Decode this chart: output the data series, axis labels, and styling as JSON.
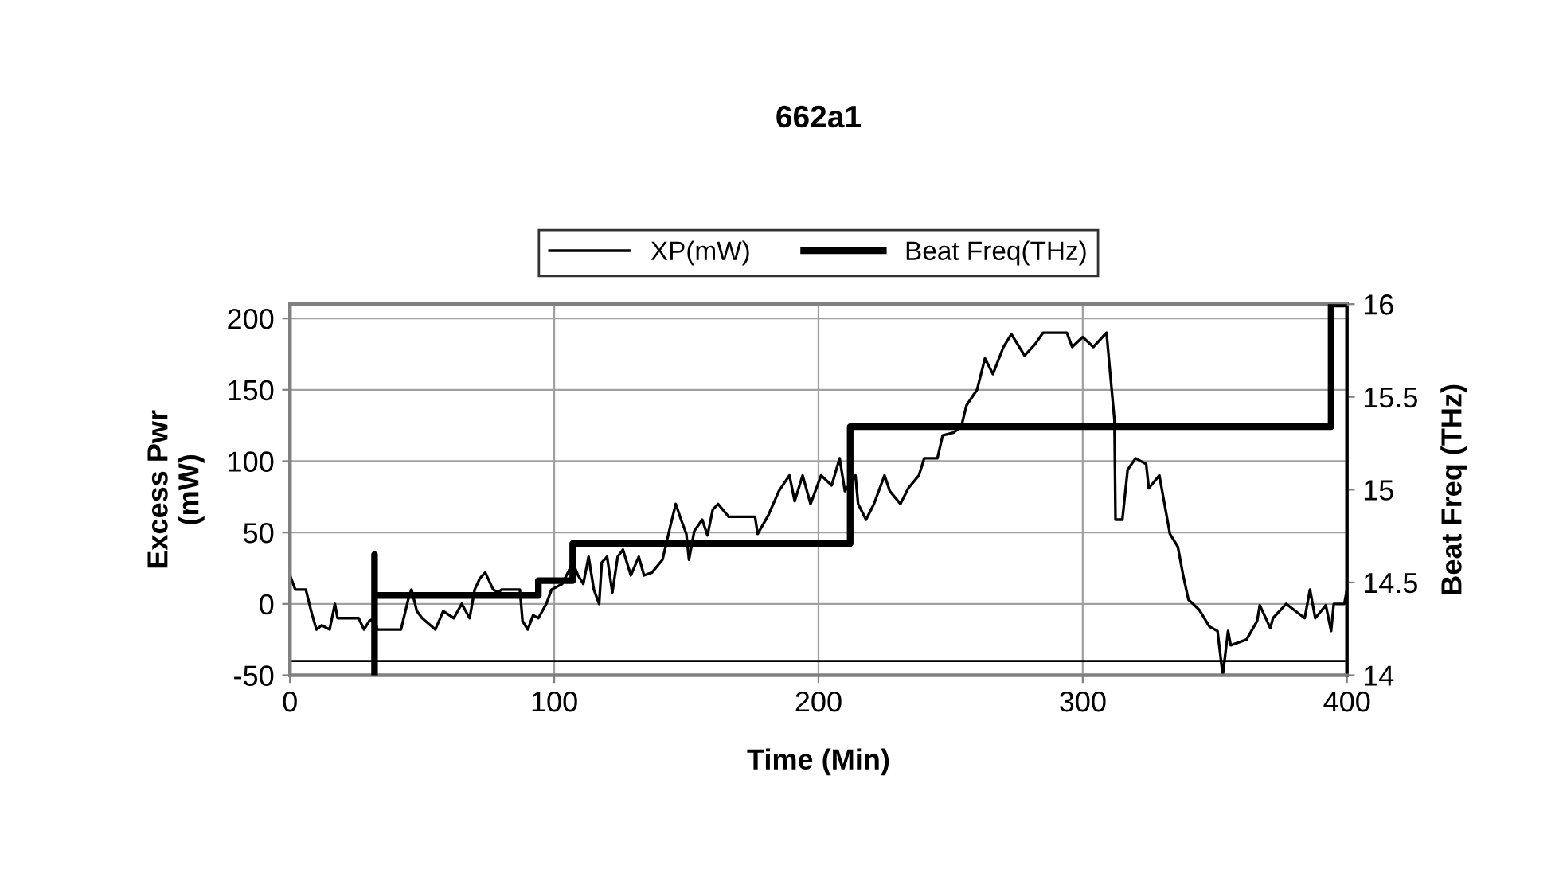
{
  "chart_data": {
    "type": "line",
    "title": "662a1",
    "xlabel": "Time (Min)",
    "ylabel": "Excess Pwr\n(mW)",
    "y2label": "Beat Freq (THz)",
    "xlim": [
      0,
      400
    ],
    "xticks": [
      0,
      100,
      200,
      300,
      400
    ],
    "ylim": [
      -50,
      210
    ],
    "yticks": [
      -50,
      0,
      50,
      100,
      150,
      200
    ],
    "y2lim": [
      14,
      16
    ],
    "y2ticks": [
      14,
      14.5,
      15,
      15.5,
      16
    ],
    "grid": true,
    "legend": "top",
    "marker": "none",
    "line_style": "solid",
    "ref_lines": [
      {
        "axis": "y",
        "value": -40,
        "color": "#000000"
      }
    ],
    "series": [
      {
        "name": "XP(mW)",
        "color": "#000000",
        "axis": "y",
        "x": [
          0,
          2,
          6,
          8,
          10,
          12,
          15,
          17,
          18,
          26,
          28,
          30,
          32,
          33,
          42,
          45,
          46,
          48,
          50,
          55,
          58,
          62,
          65,
          68,
          69.9,
          71.9,
          73.9,
          76.9,
          78.9,
          80,
          87,
          88,
          90,
          92,
          94,
          97,
          99,
          103,
          106,
          107,
          109,
          111,
          113,
          115,
          117,
          118,
          120,
          122,
          124,
          126,
          129,
          132,
          134,
          137,
          141,
          144,
          146,
          148,
          150,
          151,
          153,
          156,
          158,
          160,
          162,
          166,
          176,
          177,
          181,
          185,
          189,
          191,
          194,
          197,
          201,
          205,
          208,
          210,
          214,
          215,
          218,
          221,
          225,
          227,
          231,
          234,
          238,
          240,
          245,
          247,
          251,
          254,
          256,
          260,
          263,
          266,
          270,
          273,
          278,
          282,
          285,
          294,
          296,
          300,
          304,
          309,
          312,
          312.4,
          315,
          317,
          320,
          324,
          325,
          329,
          333,
          336,
          338,
          340,
          344,
          348,
          351,
          353,
          355,
          356,
          362,
          366,
          367,
          371,
          372,
          377,
          384,
          386,
          388,
          392,
          394,
          395,
          399,
          400,
          400
        ],
        "values": [
          20,
          10,
          10,
          -5,
          -18,
          -15,
          -18,
          0,
          -10,
          -10,
          -18,
          -12,
          -10,
          -18,
          -18,
          5,
          10,
          -5,
          -10,
          -18,
          -5,
          -10,
          0,
          -10,
          10,
          18,
          22,
          10,
          8,
          10,
          10,
          -12,
          -18,
          -8,
          -10,
          0,
          10,
          14,
          25,
          29,
          20,
          14,
          33,
          10,
          0,
          29,
          33,
          8,
          33,
          38,
          20,
          33,
          20,
          22,
          31,
          55,
          70,
          59,
          49,
          31,
          51,
          59,
          48,
          66,
          70,
          61,
          61,
          49,
          62,
          79,
          90,
          72,
          90,
          70,
          90,
          83,
          102,
          79,
          90,
          70,
          59,
          70,
          90,
          79,
          70,
          81,
          90,
          102,
          102,
          118,
          120,
          124,
          139,
          150,
          172,
          161,
          180,
          189,
          174,
          182,
          190,
          190,
          180,
          187,
          180,
          190,
          129,
          59,
          59,
          94,
          102,
          98,
          81,
          90,
          49,
          40,
          20,
          3,
          -4,
          -16,
          -19,
          -50,
          -19,
          -29,
          -25,
          -12,
          -1,
          -17,
          -10,
          0,
          -10,
          10,
          -10,
          -1,
          -19,
          0,
          0,
          10,
          -12
        ]
      },
      {
        "name": "Beat Freq(THz)",
        "color": "#000000",
        "axis": "y2",
        "x": [
          32,
          32,
          32,
          94,
          94,
          107,
          107,
          212,
          212,
          394,
          394,
          400
        ],
        "values": [
          14,
          14.65,
          14.43,
          14.43,
          14.51,
          14.51,
          14.71,
          14.71,
          15.34,
          15.34,
          16,
          16
        ]
      }
    ]
  }
}
